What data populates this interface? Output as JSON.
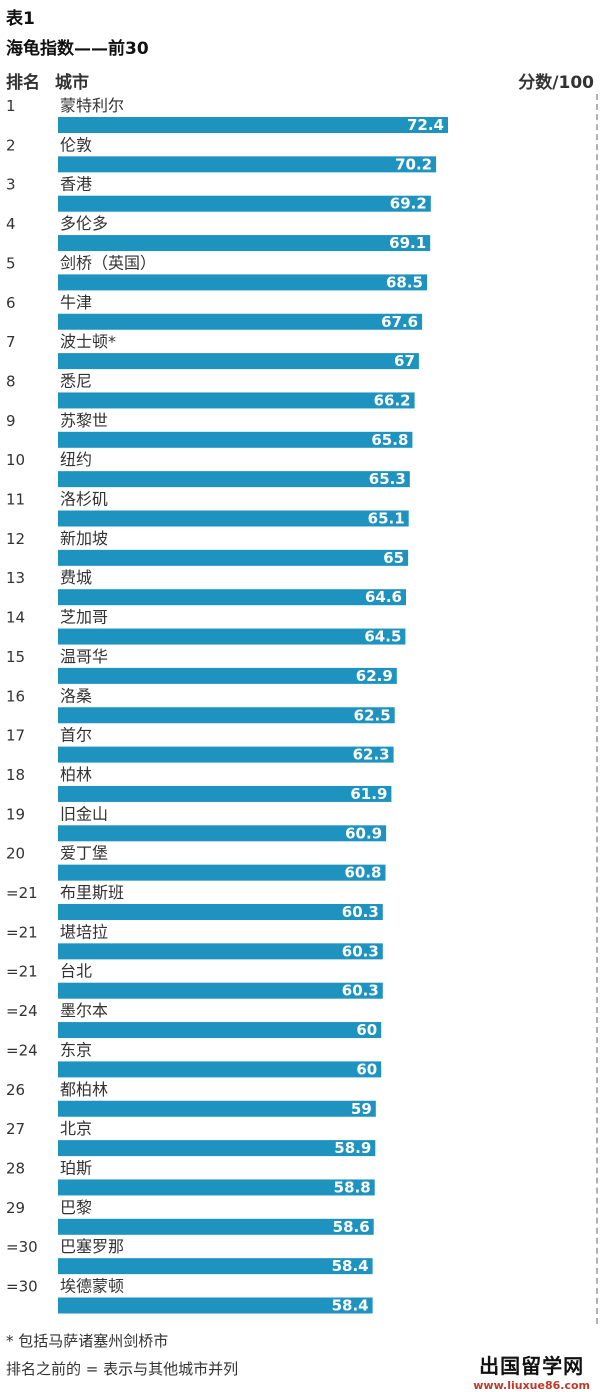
{
  "header": {
    "table_title": "表1",
    "subtitle": "海龟指数——前30",
    "col_rank": "排名",
    "col_city": "城市",
    "col_score": "分数/100"
  },
  "chart_data": {
    "type": "bar",
    "orientation": "horizontal",
    "title": "海龟指数——前30",
    "xlabel": "分数/100",
    "xlim": [
      0,
      100
    ],
    "grid": false,
    "ranks": [
      "1",
      "2",
      "3",
      "4",
      "5",
      "6",
      "7",
      "8",
      "9",
      "10",
      "11",
      "12",
      "13",
      "14",
      "15",
      "16",
      "17",
      "18",
      "19",
      "20",
      "=21",
      "=21",
      "=21",
      "=24",
      "=24",
      "26",
      "27",
      "28",
      "29",
      "=30",
      "=30"
    ],
    "categories": [
      "蒙特利尔",
      "伦敦",
      "香港",
      "多伦多",
      "剑桥（英国）",
      "牛津",
      "波士顿*",
      "悉尼",
      "苏黎世",
      "纽约",
      "洛杉矶",
      "新加坡",
      "费城",
      "芝加哥",
      "温哥华",
      "洛桑",
      "首尔",
      "柏林",
      "旧金山",
      "爱丁堡",
      "布里斯班",
      "堪培拉",
      "台北",
      "墨尔本",
      "东京",
      "都柏林",
      "北京",
      "珀斯",
      "巴黎",
      "巴塞罗那",
      "埃德蒙顿"
    ],
    "values": [
      72.4,
      70.2,
      69.2,
      69.1,
      68.5,
      67.6,
      67,
      66.2,
      65.8,
      65.3,
      65.1,
      65,
      64.6,
      64.5,
      62.9,
      62.5,
      62.3,
      61.9,
      60.9,
      60.8,
      60.3,
      60.3,
      60.3,
      60,
      60,
      59,
      58.9,
      58.8,
      58.6,
      58.4,
      58.4
    ],
    "value_labels": [
      "72.4",
      "70.2",
      "69.2",
      "69.1",
      "68.5",
      "67.6",
      "67",
      "66.2",
      "65.8",
      "65.3",
      "65.1",
      "65",
      "64.6",
      "64.5",
      "62.9",
      "62.5",
      "62.3",
      "61.9",
      "60.9",
      "60.8",
      "60.3",
      "60.3",
      "60.3",
      "60",
      "60",
      "59",
      "58.9",
      "58.8",
      "58.6",
      "58.4",
      "58.4"
    ],
    "bar_color": "#1f93bf"
  },
  "footnotes": {
    "note1": "* 包括马萨诸塞州剑桥市",
    "note2": "排名之前的 = 表示与其他城市并列"
  },
  "watermark": {
    "title": "出国留学网",
    "url": "www.liuxue86.com"
  }
}
